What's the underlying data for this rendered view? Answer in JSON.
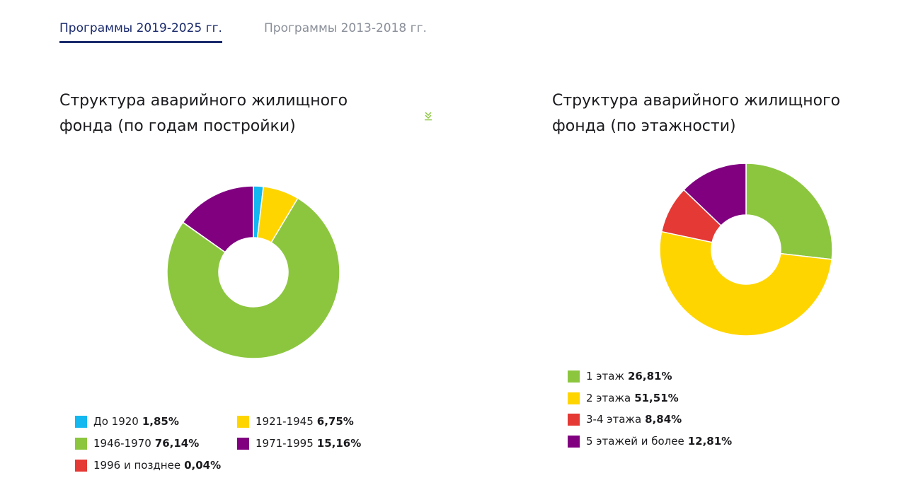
{
  "tabs": [
    {
      "label": "Программы 2019-2025 гг.",
      "active": true
    },
    {
      "label": "Программы 2013-2018 гг.",
      "active": false
    }
  ],
  "chart_data": [
    {
      "type": "pie",
      "donut": true,
      "title": "Структура аварийного жилищного фонда (по годам постройки)",
      "slices": [
        {
          "label": "До 1920",
          "value": 1.85,
          "value_label": "1,85%",
          "color": "#12b8ef"
        },
        {
          "label": "1921-1945",
          "value": 6.75,
          "value_label": "6,75%",
          "color": "#ffd500"
        },
        {
          "label": "1946-1970",
          "value": 76.14,
          "value_label": "76,14%",
          "color": "#8cc63f"
        },
        {
          "label": "1996 и позднее",
          "value": 0.04,
          "value_label": "0,04%",
          "color": "#e53935"
        },
        {
          "label": "1971-1995",
          "value": 15.16,
          "value_label": "15,16%",
          "color": "#800080"
        }
      ],
      "legend_order": [
        0,
        1,
        2,
        4,
        3
      ],
      "legend": "bottom"
    },
    {
      "type": "pie",
      "donut": true,
      "title": "Структура аварийного жилищного фонда (по этажности)",
      "slices": [
        {
          "label": "1 этаж",
          "value": 26.81,
          "value_label": "26,81%",
          "color": "#8cc63f"
        },
        {
          "label": "2 этажа",
          "value": 51.51,
          "value_label": "51,51%",
          "color": "#ffd500"
        },
        {
          "label": "3-4 этажа",
          "value": 8.84,
          "value_label": "8,84%",
          "color": "#e53935"
        },
        {
          "label": "5 этажей и более",
          "value": 12.81,
          "value_label": "12,81%",
          "color": "#800080"
        }
      ],
      "legend_order": [
        0,
        1,
        2,
        3
      ],
      "legend": "bottom"
    }
  ],
  "download_color": "#8cc63f"
}
